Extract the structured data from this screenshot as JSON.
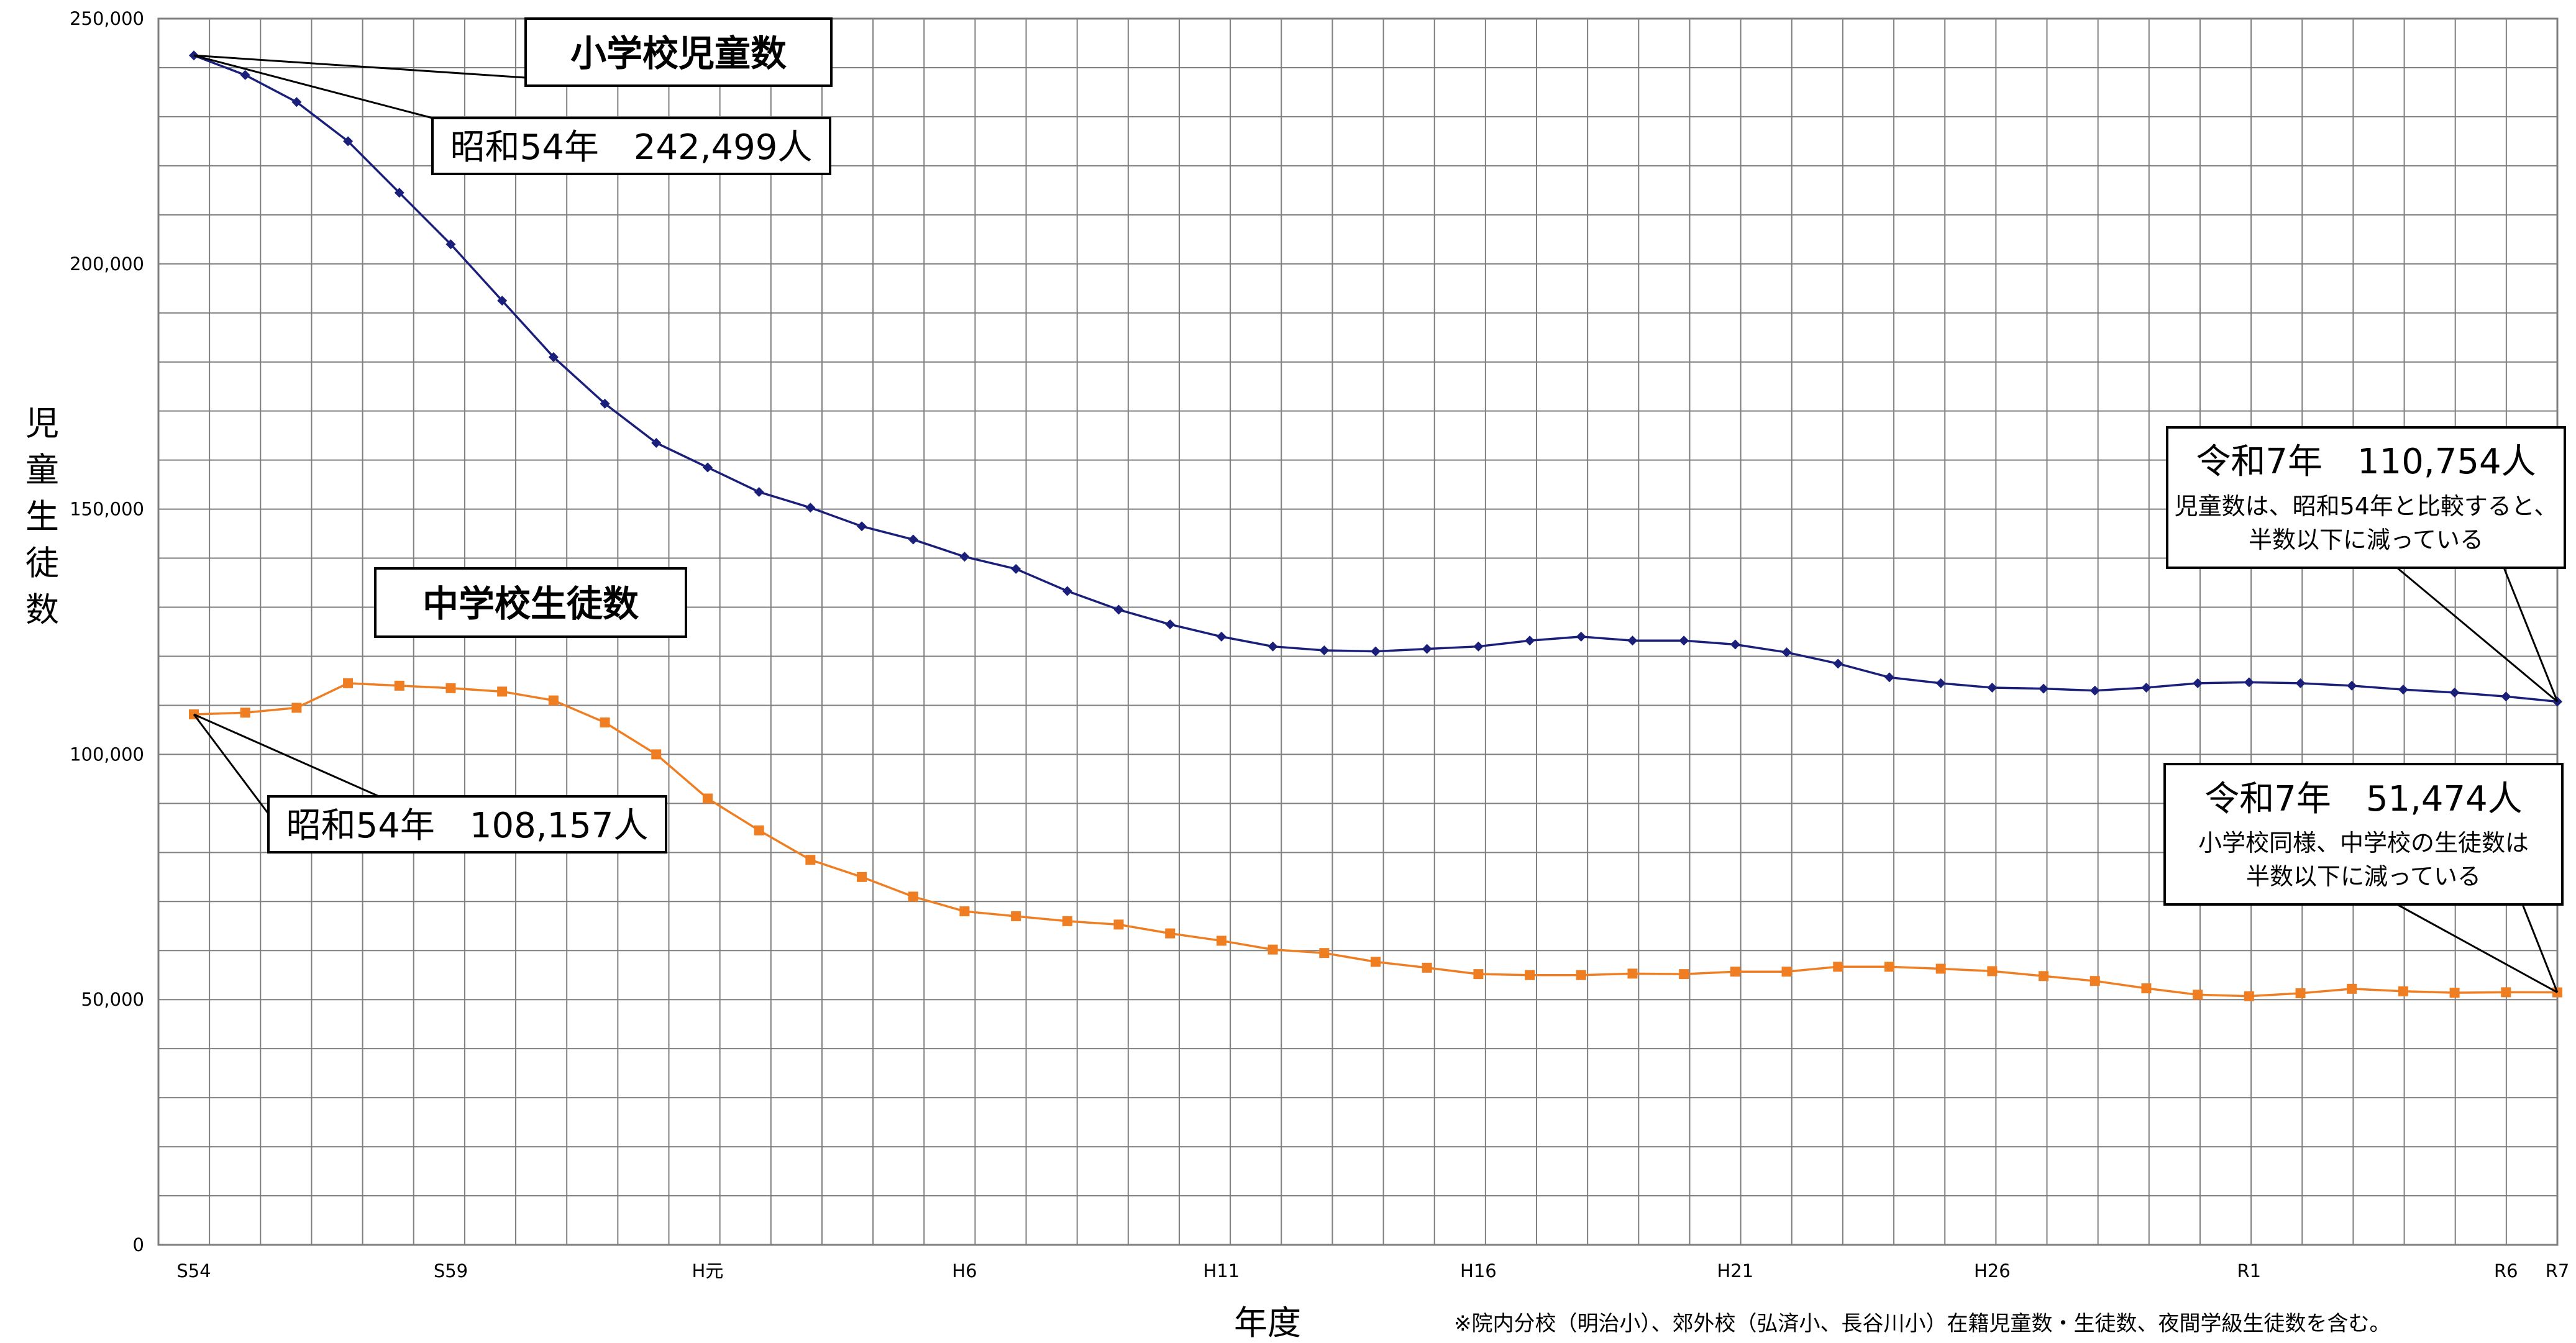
{
  "chart_data": {
    "type": "line",
    "ylabel": "児童生徒数",
    "xlabel": "年度",
    "ylim": [
      0,
      250000
    ],
    "yticks": [
      0,
      50000,
      100000,
      150000,
      200000,
      250000
    ],
    "ytick_labels": [
      "0",
      "50,000",
      "100,000",
      "150,000",
      "200,000",
      "250,000"
    ],
    "xtick_labels": [
      {
        "index": 0,
        "label": "S54"
      },
      {
        "index": 5,
        "label": "S59"
      },
      {
        "index": 10,
        "label": "H元"
      },
      {
        "index": 15,
        "label": "H6"
      },
      {
        "index": 20,
        "label": "H11"
      },
      {
        "index": 25,
        "label": "H16"
      },
      {
        "index": 30,
        "label": "H21"
      },
      {
        "index": 35,
        "label": "H26"
      },
      {
        "index": 40,
        "label": "R1"
      },
      {
        "index": 45,
        "label": "R6"
      },
      {
        "index": 46,
        "label": "R7"
      }
    ],
    "grid": true,
    "series": [
      {
        "name": "小学校児童数",
        "color": "#1a1f7a",
        "marker": "diamond",
        "values": [
          242499,
          238500,
          233000,
          225000,
          214500,
          204000,
          192500,
          181000,
          171500,
          163500,
          158500,
          153500,
          150300,
          146500,
          143800,
          140300,
          137800,
          133300,
          129500,
          126500,
          124000,
          122000,
          121200,
          121000,
          121500,
          122000,
          123200,
          124000,
          123200,
          123200,
          122400,
          120800,
          118500,
          115700,
          114500,
          113600,
          113400,
          113000,
          113600,
          114500,
          114700,
          114500,
          114000,
          113200,
          112600,
          111800,
          110754
        ]
      },
      {
        "name": "中学校生徒数",
        "color": "#ef7d22",
        "marker": "square",
        "values": [
          108157,
          108500,
          109500,
          114500,
          114000,
          113500,
          112800,
          111000,
          106500,
          100000,
          91000,
          84500,
          78500,
          75000,
          71000,
          68000,
          67000,
          66000,
          65300,
          63500,
          62000,
          60200,
          59500,
          57700,
          56500,
          55200,
          55000,
          55000,
          55300,
          55200,
          55700,
          55700,
          56700,
          56700,
          56300,
          55800,
          54800,
          53800,
          52300,
          51000,
          50700,
          51300,
          52200,
          51700,
          51400,
          51500,
          51474
        ]
      }
    ],
    "annotations": {
      "elem_title": "小学校児童数",
      "jh_title": "中学校生徒数",
      "elem_start": "昭和54年　242,499人",
      "jh_start": "昭和54年　108,157人",
      "elem_end_big": "令和7年　110,754人",
      "elem_end_line1": "児童数は、昭和54年と比較すると、",
      "elem_end_line2": "半数以下に減っている",
      "jh_end_big": "令和7年　51,474人",
      "jh_end_line1": "小学校同様、中学校の生徒数は",
      "jh_end_line2": "半数以下に減っている"
    },
    "footnote": "※院内分校（明治小）、郊外校（弘済小、長谷川小）在籍児童数・生徒数、夜間学級生徒数を含む。"
  }
}
